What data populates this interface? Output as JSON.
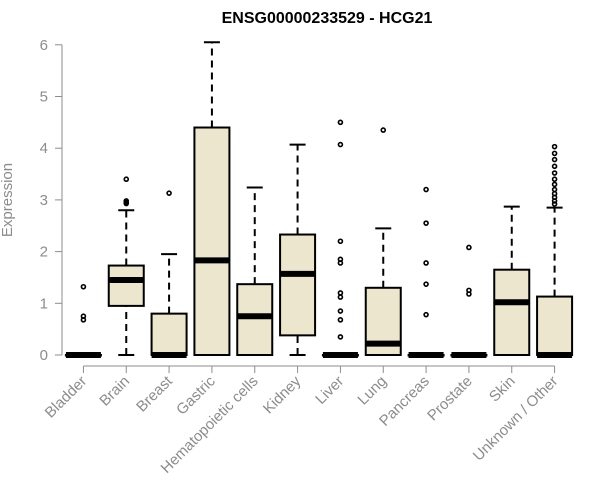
{
  "chart_data": {
    "type": "boxplot",
    "title": "ENSG00000233529 - HCG21",
    "xlabel": "",
    "ylabel": "Expression",
    "ylim": [
      0,
      6
    ],
    "yticks": [
      0,
      1,
      2,
      3,
      4,
      5,
      6
    ],
    "grid": false,
    "box_fill": "#ede6ce",
    "categories": [
      "Bladder",
      "Brain",
      "Breast",
      "Gastric",
      "Hematopoietic cells",
      "Kidney",
      "Liver",
      "Lung",
      "Pancreas",
      "Prostate",
      "Skin",
      "Unknown / Other"
    ],
    "boxes": [
      {
        "q1": 0,
        "median": 0,
        "q3": 0,
        "whisker_low": 0,
        "whisker_high": 0,
        "outliers": [
          1.32,
          0.75,
          0.68
        ]
      },
      {
        "q1": 0.95,
        "median": 1.45,
        "q3": 1.73,
        "whisker_low": 0,
        "whisker_high": 2.8,
        "outliers": [
          3.4,
          2.98,
          2.95,
          2.93
        ]
      },
      {
        "q1": 0,
        "median": 0,
        "q3": 0.8,
        "whisker_low": 0,
        "whisker_high": 1.95,
        "outliers": [
          3.13
        ]
      },
      {
        "q1": 0,
        "median": 1.83,
        "q3": 4.4,
        "whisker_low": 0,
        "whisker_high": 6.05,
        "outliers": []
      },
      {
        "q1": 0,
        "median": 0.75,
        "q3": 1.37,
        "whisker_low": 0,
        "whisker_high": 3.24,
        "outliers": []
      },
      {
        "q1": 0.38,
        "median": 1.57,
        "q3": 2.33,
        "whisker_low": 0,
        "whisker_high": 4.07,
        "outliers": []
      },
      {
        "q1": 0,
        "median": 0,
        "q3": 0,
        "whisker_low": 0,
        "whisker_high": 0,
        "outliers": [
          4.5,
          4.07,
          2.2,
          1.85,
          1.78,
          1.2,
          1.12,
          0.85,
          0.68,
          0.35
        ]
      },
      {
        "q1": 0,
        "median": 0.22,
        "q3": 1.3,
        "whisker_low": 0,
        "whisker_high": 2.45,
        "outliers": [
          4.35
        ]
      },
      {
        "q1": 0,
        "median": 0,
        "q3": 0,
        "whisker_low": 0,
        "whisker_high": 0,
        "outliers": [
          3.2,
          2.55,
          1.78,
          1.37,
          0.78
        ]
      },
      {
        "q1": 0,
        "median": 0,
        "q3": 0,
        "whisker_low": 0,
        "whisker_high": 0,
        "outliers": [
          2.08,
          1.25,
          1.18
        ]
      },
      {
        "q1": 0,
        "median": 1.02,
        "q3": 1.65,
        "whisker_low": 0,
        "whisker_high": 2.87,
        "outliers": []
      },
      {
        "q1": 0,
        "median": 0,
        "q3": 1.13,
        "whisker_low": 0,
        "whisker_high": 2.85,
        "outliers": [
          4.03,
          3.9,
          3.78,
          3.65,
          3.52,
          3.4,
          3.3,
          3.2,
          3.12,
          3.05,
          2.98,
          2.92
        ]
      }
    ]
  }
}
